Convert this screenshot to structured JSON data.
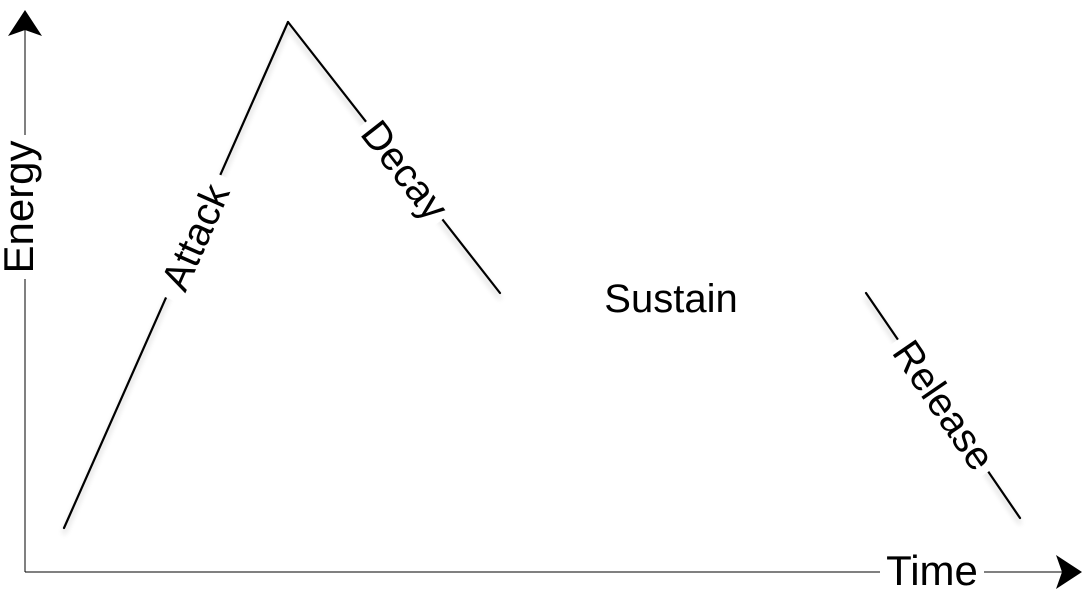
{
  "diagram": {
    "type": "adsr-envelope",
    "axes": {
      "x_label": "Time",
      "y_label": "Energy"
    },
    "stages": [
      {
        "id": "attack",
        "label": "Attack"
      },
      {
        "id": "decay",
        "label": "Decay"
      },
      {
        "id": "sustain",
        "label": "Sustain"
      },
      {
        "id": "release",
        "label": "Release"
      }
    ],
    "colors": {
      "line": "#000000",
      "background": "#ffffff"
    }
  }
}
